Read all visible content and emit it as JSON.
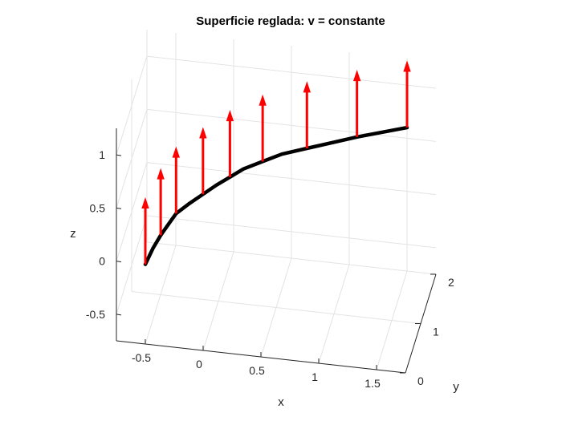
{
  "chart_data": {
    "type": "3d-line-quiver",
    "title": "Superficie reglada: v = constante",
    "xlabel": "x",
    "ylabel": "y",
    "zlabel": "z",
    "xlim": [
      -0.75,
      1.75
    ],
    "ylim": [
      0,
      2
    ],
    "zlim": [
      -0.75,
      1.25
    ],
    "xticks": [
      -0.5,
      0,
      0.5,
      1,
      1.5
    ],
    "yticks": [
      0,
      1,
      2
    ],
    "zticks": [
      -0.5,
      0,
      0.5,
      1
    ],
    "xtick_labels": [
      "-0.5",
      "0",
      "0.5",
      "1",
      "1.5"
    ],
    "ytick_labels": [
      "0",
      "1",
      "2"
    ],
    "ztick_labels": [
      "-0.5",
      "0",
      "0.5",
      "1"
    ],
    "grid": true,
    "curve": {
      "color": "#000000",
      "x": [
        -0.5,
        -0.45,
        -0.4,
        -0.35,
        -0.3,
        -0.2,
        -0.1,
        0.0,
        0.1,
        0.2,
        0.35,
        0.5,
        0.7,
        0.9,
        1.1,
        1.3,
        1.5
      ],
      "y": [
        0,
        0.125,
        0.25,
        0.375,
        0.5,
        0.625,
        0.75,
        0.875,
        1.0,
        1.125,
        1.25,
        1.375,
        1.5,
        1.625,
        1.75,
        1.875,
        2.0
      ],
      "z": [
        0,
        0.1,
        0.17,
        0.22,
        0.27,
        0.32,
        0.36,
        0.4,
        0.43,
        0.46,
        0.49,
        0.52,
        0.54,
        0.56,
        0.58,
        0.59,
        0.6
      ]
    },
    "arrows": {
      "color": "#ff0000",
      "x": [
        -0.5,
        -0.4,
        -0.3,
        -0.1,
        0.1,
        0.35,
        0.7,
        1.1,
        1.5
      ],
      "y": [
        0,
        0.25,
        0.5,
        0.75,
        1.0,
        1.25,
        1.5,
        1.75,
        2.0
      ],
      "z": [
        0,
        0.17,
        0.27,
        0.36,
        0.43,
        0.49,
        0.54,
        0.58,
        0.6
      ],
      "w": [
        0.62,
        0.62,
        0.62,
        0.62,
        0.62,
        0.62,
        0.62,
        0.62,
        0.62
      ]
    }
  }
}
